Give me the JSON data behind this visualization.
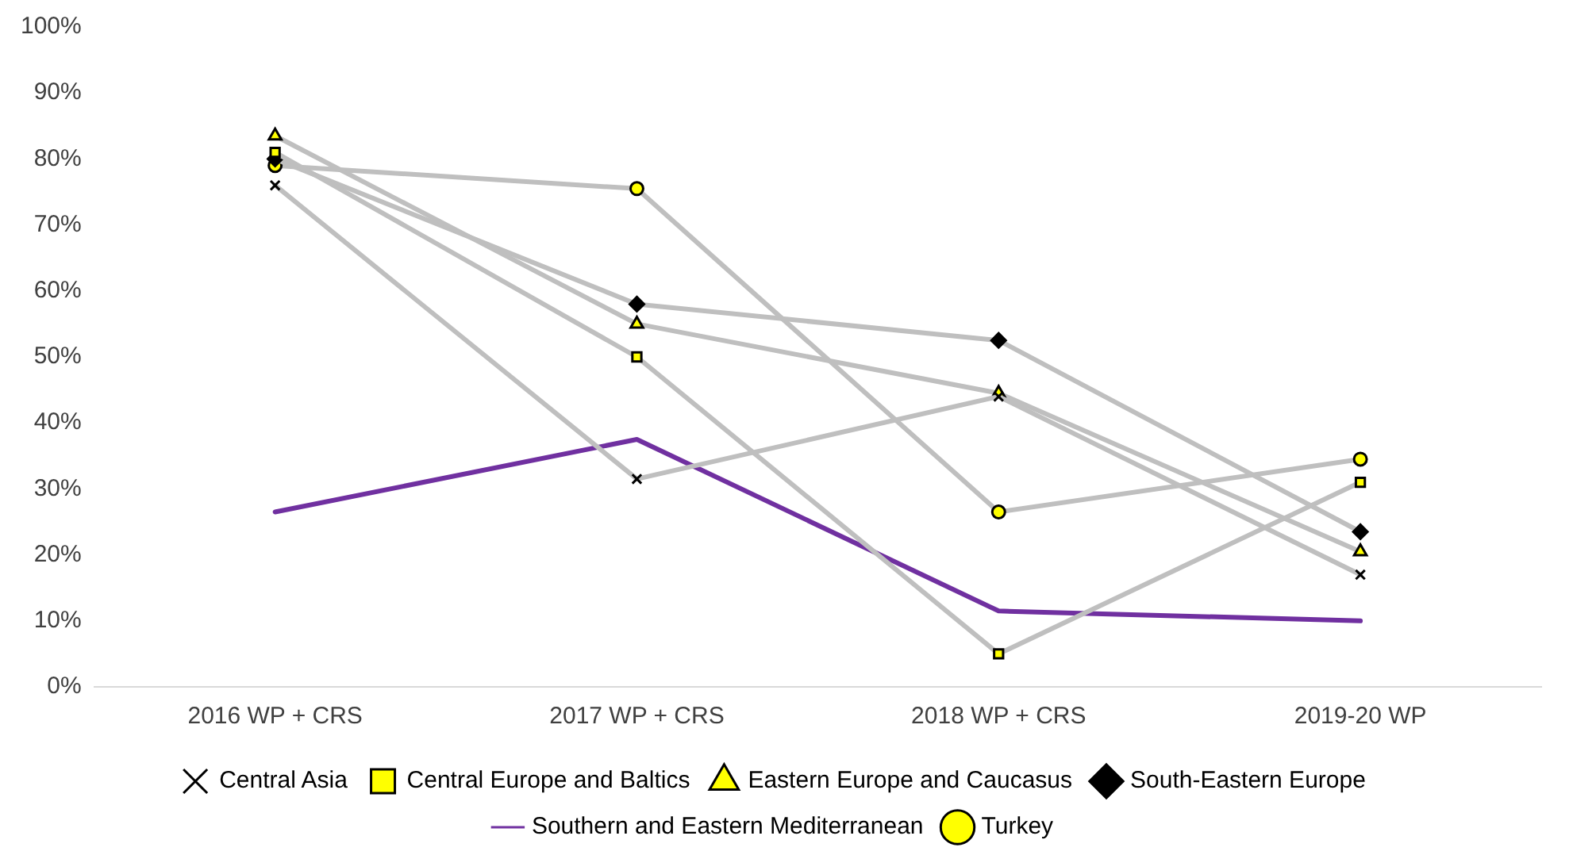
{
  "chart_data": {
    "type": "line",
    "categories": [
      "2016 WP + CRS",
      "2017 WP + CRS",
      "2018 WP + CRS",
      "2019-20 WP"
    ],
    "series": [
      {
        "name": "Central Asia",
        "color": "#bfbfbf",
        "marker": "cross",
        "values": [
          76,
          31.5,
          44,
          17
        ]
      },
      {
        "name": "Central Europe and Baltics",
        "color": "#bfbfbf",
        "marker": "square",
        "values": [
          81,
          50,
          5,
          31
        ]
      },
      {
        "name": "Eastern Europe and Caucasus",
        "color": "#bfbfbf",
        "marker": "triangle",
        "values": [
          83.5,
          55,
          44.5,
          20.5
        ]
      },
      {
        "name": "South-Eastern Europe",
        "color": "#bfbfbf",
        "marker": "diamond",
        "values": [
          80,
          58,
          52.5,
          23.5
        ]
      },
      {
        "name": "Southern and Eastern Mediterranean",
        "color": "#7030a0",
        "marker": "none",
        "values": [
          26.5,
          37.5,
          11.5,
          10
        ]
      },
      {
        "name": "Turkey",
        "color": "#bfbfbf",
        "marker": "circle",
        "values": [
          79,
          75.5,
          26.5,
          34.5
        ]
      }
    ],
    "ylim": [
      0,
      100
    ],
    "yticks": [
      {
        "value": 0,
        "label": "0%"
      },
      {
        "value": 10,
        "label": "10%"
      },
      {
        "value": 20,
        "label": "20%"
      },
      {
        "value": 30,
        "label": "30%"
      },
      {
        "value": 40,
        "label": "40%"
      },
      {
        "value": 50,
        "label": "50%"
      },
      {
        "value": 60,
        "label": "60%"
      },
      {
        "value": 70,
        "label": "70%"
      },
      {
        "value": 80,
        "label": "80%"
      },
      {
        "value": 90,
        "label": "90%"
      },
      {
        "value": 100,
        "label": "100%"
      }
    ],
    "grid": false,
    "legend": "bottom"
  }
}
